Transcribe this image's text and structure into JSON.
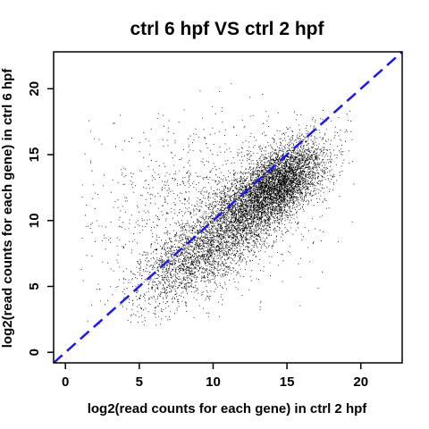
{
  "chart_data": {
    "type": "scatter",
    "title": "ctrl 6 hpf VS ctrl 2 hpf",
    "xlabel": "log2(read counts for each gene) in ctrl 2 hpf",
    "ylabel": "log2(read counts for each gene) in ctrl 6 hpf",
    "xlim": [
      -0.8,
      22.8
    ],
    "ylim": [
      -0.8,
      22.8
    ],
    "x_ticks": [
      0,
      5,
      10,
      15,
      20
    ],
    "y_ticks": [
      0,
      5,
      10,
      15,
      20
    ],
    "grid": false,
    "legend": "none",
    "point_color": "#000000",
    "reference_line": {
      "type": "identity",
      "slope": 1,
      "intercept": 0,
      "style": "dashed",
      "color": "#1a1aee"
    },
    "distribution": {
      "clusters": [
        {
          "x_mean": 14.5,
          "y_mean": 13.0,
          "x_sd": 1.6,
          "y_sd": 1.6,
          "corr": 0.55,
          "weight": 0.42
        },
        {
          "x_mean": 12.0,
          "y_mean": 10.5,
          "x_sd": 2.0,
          "y_sd": 2.0,
          "corr": 0.6,
          "weight": 0.28
        },
        {
          "x_mean": 8.5,
          "y_mean": 7.0,
          "x_sd": 2.0,
          "y_sd": 1.8,
          "corr": 0.55,
          "weight": 0.18
        },
        {
          "x_mean": 9.0,
          "y_mean": 11.0,
          "x_sd": 4.0,
          "y_sd": 3.5,
          "corr": 0.2,
          "weight": 0.12
        }
      ],
      "n_points": 9000
    }
  }
}
